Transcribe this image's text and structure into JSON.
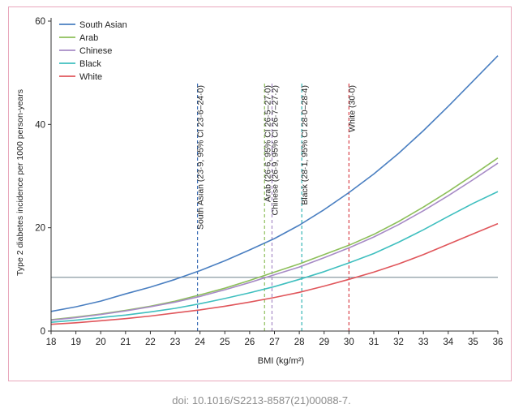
{
  "chart_data": {
    "type": "line",
    "xlabel": "BMI (kg/m²)",
    "ylabel": "Type 2 diabetes incidence per 1000 person-years",
    "xlim": [
      18,
      36
    ],
    "ylim": [
      0,
      60
    ],
    "x_ticks": [
      18,
      19,
      20,
      21,
      22,
      23,
      24,
      25,
      26,
      27,
      28,
      29,
      30,
      31,
      32,
      33,
      34,
      35,
      36
    ],
    "y_ticks": [
      0,
      20,
      40,
      60
    ],
    "x": [
      18,
      19,
      20,
      21,
      22,
      23,
      24,
      25,
      26,
      27,
      28,
      29,
      30,
      31,
      32,
      33,
      34,
      35,
      36
    ],
    "series": [
      {
        "name": "South Asian",
        "color": "#4a7fc1",
        "values": [
          3.8,
          4.7,
          5.8,
          7.2,
          8.5,
          10.0,
          11.7,
          13.6,
          15.7,
          17.9,
          20.5,
          23.5,
          26.8,
          30.4,
          34.4,
          38.8,
          43.5,
          48.4,
          53.3
        ]
      },
      {
        "name": "Arab",
        "color": "#8dbf5a",
        "values": [
          2.2,
          2.7,
          3.3,
          4.0,
          4.8,
          5.8,
          7.0,
          8.3,
          9.8,
          11.4,
          13.0,
          14.8,
          16.6,
          18.7,
          21.2,
          24.0,
          27.0,
          30.2,
          33.5
        ]
      },
      {
        "name": "Chinese",
        "color": "#a78bc6",
        "values": [
          2.1,
          2.6,
          3.2,
          3.9,
          4.7,
          5.6,
          6.7,
          8.0,
          9.4,
          10.9,
          12.4,
          14.2,
          16.1,
          18.2,
          20.6,
          23.3,
          26.2,
          29.3,
          32.5
        ]
      },
      {
        "name": "Black",
        "color": "#3fbfbf",
        "values": [
          1.7,
          2.1,
          2.6,
          3.1,
          3.7,
          4.4,
          5.3,
          6.3,
          7.4,
          8.6,
          10.0,
          11.5,
          13.2,
          15.0,
          17.2,
          19.6,
          22.2,
          24.7,
          27.0
        ]
      },
      {
        "name": "White",
        "color": "#e0565b",
        "values": [
          1.3,
          1.6,
          2.0,
          2.4,
          2.9,
          3.5,
          4.1,
          4.8,
          5.6,
          6.5,
          7.5,
          8.7,
          10.0,
          11.4,
          13.0,
          14.8,
          16.8,
          18.8,
          20.8
        ]
      }
    ],
    "reference_line": {
      "y": 10.4,
      "color": "#8a9aa3"
    },
    "thresholds": [
      {
        "x": 23.9,
        "label": "South Asian (23·9, 95% CI 23·6–24·0)",
        "color": "#3d6fb6"
      },
      {
        "x": 26.6,
        "label": "Arab (26·6, 95% CI 26·5–27·0)",
        "color": "#8dbf5a"
      },
      {
        "x": 26.9,
        "label": "Chinese (26·9, 95% CI 26·7–27·2)",
        "color": "#a78bc6"
      },
      {
        "x": 28.1,
        "label": "Black (28·1, 95% CI 28·0–28·4)",
        "color": "#35b5b5"
      },
      {
        "x": 30.0,
        "label": "White (30·0)",
        "color": "#d9434a"
      }
    ],
    "legend_position": "top-left",
    "grid": false
  },
  "caption": "doi: 10.1016/S2213-8587(21)00088-7."
}
